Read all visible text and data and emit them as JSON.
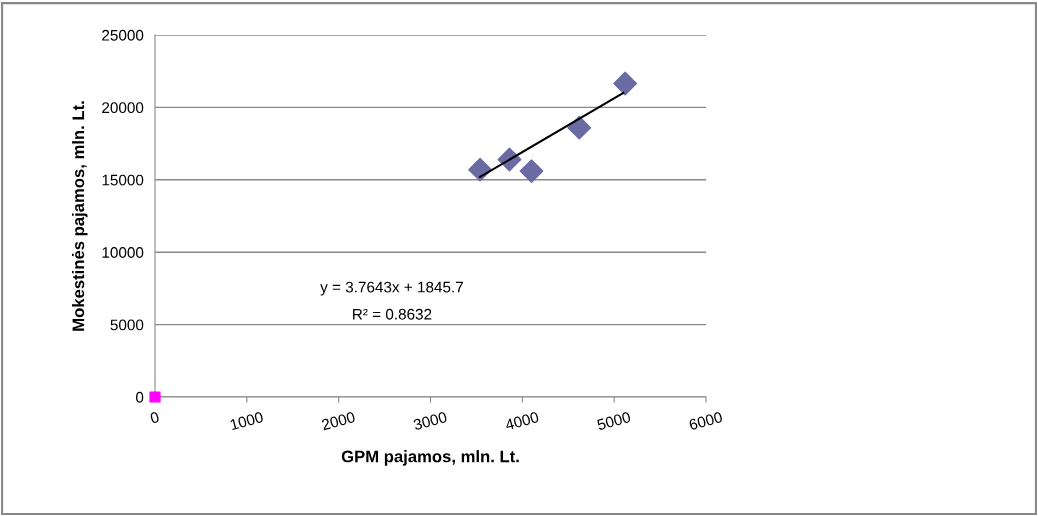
{
  "chart_data": {
    "type": "scatter",
    "xlabel": "GPM pajamos, mln. Lt.",
    "ylabel": "Mokestinės pajamos, mln. Lt.",
    "series": [
      {
        "color": "#6b6ba3",
        "marker": "diamond",
        "x": [
          3540,
          3860,
          4100,
          4620,
          5120
        ],
        "values": [
          15700,
          16400,
          15600,
          18600,
          21650
        ]
      },
      {
        "color": "#ff00ff",
        "marker": "square",
        "x": [
          0
        ],
        "values": [
          0
        ]
      },
      {
        "type": "line",
        "color": "#000000",
        "marker": "none",
        "x": [
          3540,
          5100
        ],
        "values": [
          15200,
          21000
        ]
      }
    ],
    "annotations": [
      "y = 3.7643x + 1845.7",
      "R² = 0.8632"
    ],
    "xlim": [
      0,
      6000
    ],
    "xticks": [
      0,
      1000,
      2000,
      3000,
      4000,
      5000,
      6000
    ],
    "ylim": [
      0,
      25000
    ],
    "yticks": [
      0,
      5000,
      10000,
      15000,
      20000,
      25000
    ],
    "grid": "y",
    "legend": false
  }
}
